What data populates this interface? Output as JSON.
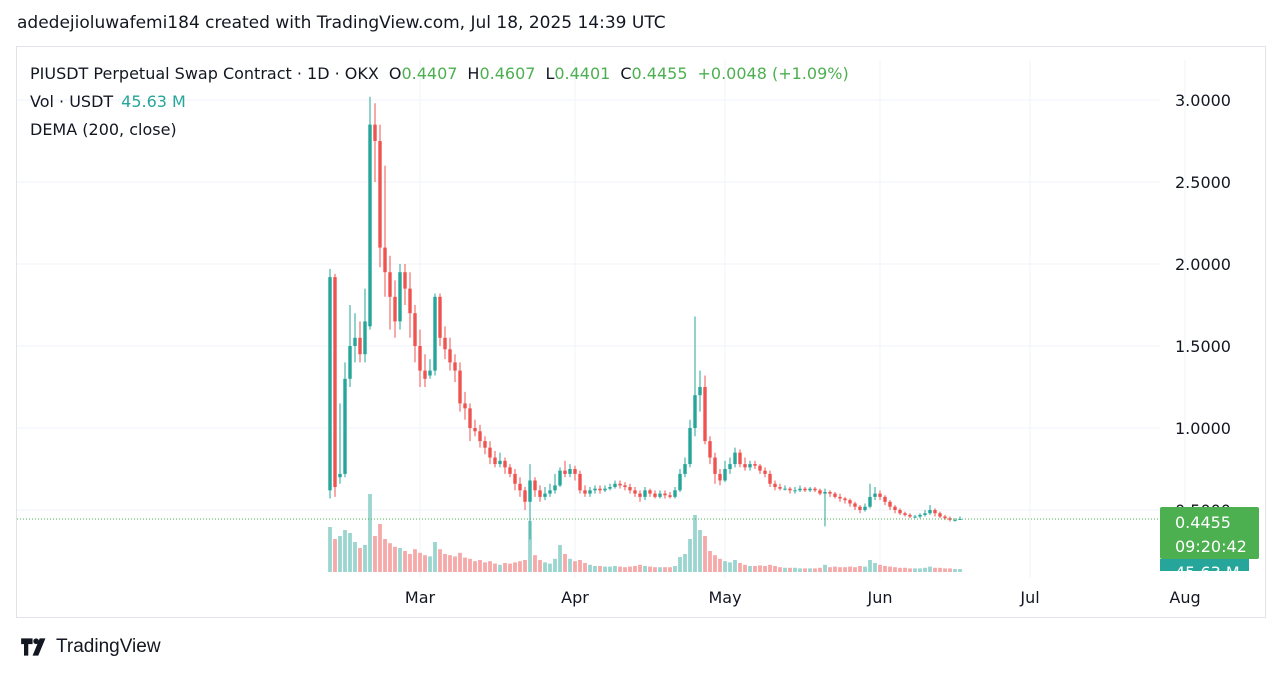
{
  "caption": "adedejioluwafemi184 created with TradingView.com, Jul 18, 2025 14:39 UTC",
  "legend": {
    "symbol": "PIUSDT Perpetual Swap Contract · 1D · OKX",
    "open_label": "O",
    "open": "0.4407",
    "high_label": "H",
    "high": "0.4607",
    "low_label": "L",
    "low": "0.4401",
    "close_label": "C",
    "close": "0.4455",
    "change": "+0.0048 (+1.09%)",
    "vol_label": "Vol · USDT",
    "vol_value": "45.63 M",
    "dema_label": "DEMA (200, close)"
  },
  "brand": "TradingView",
  "colors": {
    "up": "#26a69a",
    "down": "#ef5350",
    "up_vol": "#9bd5cf",
    "down_vol": "#f5a9a8",
    "price_tag": "#4caf50",
    "vol_tag": "#26a69a"
  },
  "chart_data": {
    "type": "candlestick",
    "y_ticks": [
      "3.0000",
      "2.5000",
      "2.0000",
      "1.5000",
      "1.0000",
      "0.5000"
    ],
    "ylim": [
      0.3,
      3.05
    ],
    "x_ticks": [
      {
        "label": "Mar",
        "day": 30
      },
      {
        "label": "Apr",
        "day": 61
      },
      {
        "label": "May",
        "day": 91
      },
      {
        "label": "Jun",
        "day": 122
      },
      {
        "label": "Jul",
        "day": 152
      },
      {
        "label": "Aug",
        "day": 183
      }
    ],
    "last_price": "0.4455",
    "last_price_value": 0.4455,
    "countdown": "09:20:42",
    "last_volume": "45.63 M",
    "candles": [
      [
        0.62,
        1.92,
        1.97,
        0.57,
        75
      ],
      [
        1.92,
        0.64,
        1.94,
        0.58,
        55
      ],
      [
        0.7,
        0.72,
        1.15,
        0.66,
        60
      ],
      [
        0.72,
        1.3,
        1.4,
        0.7,
        70
      ],
      [
        1.3,
        1.5,
        1.75,
        1.25,
        65
      ],
      [
        1.5,
        1.55,
        1.7,
        1.4,
        50
      ],
      [
        1.55,
        1.45,
        1.65,
        1.4,
        40
      ],
      [
        1.45,
        1.65,
        1.85,
        1.4,
        45
      ],
      [
        1.62,
        2.85,
        3.02,
        1.6,
        130
      ],
      [
        2.85,
        2.75,
        2.98,
        2.5,
        60
      ],
      [
        2.75,
        2.1,
        2.85,
        1.98,
        80
      ],
      [
        2.1,
        1.95,
        2.6,
        1.8,
        55
      ],
      [
        1.95,
        1.8,
        2.05,
        1.6,
        48
      ],
      [
        1.8,
        1.65,
        1.9,
        1.55,
        42
      ],
      [
        1.65,
        1.95,
        2.0,
        1.6,
        40
      ],
      [
        1.95,
        1.85,
        2.0,
        1.75,
        35
      ],
      [
        1.85,
        1.7,
        1.95,
        1.55,
        30
      ],
      [
        1.7,
        1.5,
        1.75,
        1.4,
        38
      ],
      [
        1.5,
        1.35,
        1.6,
        1.25,
        32
      ],
      [
        1.35,
        1.3,
        1.45,
        1.25,
        28
      ],
      [
        1.32,
        1.35,
        1.42,
        1.3,
        26
      ],
      [
        1.35,
        1.8,
        1.82,
        1.32,
        50
      ],
      [
        1.8,
        1.55,
        1.82,
        1.5,
        38
      ],
      [
        1.55,
        1.48,
        1.62,
        1.42,
        30
      ],
      [
        1.48,
        1.4,
        1.55,
        1.35,
        28
      ],
      [
        1.4,
        1.35,
        1.45,
        1.28,
        26
      ],
      [
        1.35,
        1.15,
        1.4,
        1.1,
        32
      ],
      [
        1.15,
        1.12,
        1.22,
        1.05,
        24
      ],
      [
        1.12,
        1.0,
        1.15,
        0.92,
        22
      ],
      [
        1.0,
        0.98,
        1.05,
        0.95,
        18
      ],
      [
        0.98,
        0.92,
        1.02,
        0.88,
        20
      ],
      [
        0.92,
        0.88,
        0.95,
        0.84,
        16
      ],
      [
        0.88,
        0.82,
        0.92,
        0.78,
        18
      ],
      [
        0.82,
        0.78,
        0.86,
        0.76,
        14
      ],
      [
        0.78,
        0.8,
        0.85,
        0.76,
        12
      ],
      [
        0.8,
        0.76,
        0.82,
        0.72,
        15
      ],
      [
        0.76,
        0.72,
        0.78,
        0.7,
        14
      ],
      [
        0.72,
        0.66,
        0.75,
        0.62,
        16
      ],
      [
        0.66,
        0.62,
        0.7,
        0.58,
        18
      ],
      [
        0.62,
        0.55,
        0.64,
        0.5,
        20
      ],
      [
        0.55,
        0.68,
        0.78,
        0.32,
        85
      ],
      [
        0.68,
        0.62,
        0.7,
        0.58,
        28
      ],
      [
        0.62,
        0.58,
        0.65,
        0.55,
        20
      ],
      [
        0.58,
        0.6,
        0.64,
        0.56,
        16
      ],
      [
        0.6,
        0.62,
        0.66,
        0.58,
        14
      ],
      [
        0.62,
        0.65,
        0.72,
        0.6,
        22
      ],
      [
        0.65,
        0.74,
        0.76,
        0.64,
        45
      ],
      [
        0.74,
        0.72,
        0.8,
        0.7,
        30
      ],
      [
        0.72,
        0.75,
        0.78,
        0.7,
        22
      ],
      [
        0.75,
        0.72,
        0.77,
        0.68,
        18
      ],
      [
        0.72,
        0.62,
        0.74,
        0.6,
        20
      ],
      [
        0.62,
        0.6,
        0.65,
        0.58,
        15
      ],
      [
        0.6,
        0.62,
        0.64,
        0.58,
        12
      ],
      [
        0.62,
        0.63,
        0.65,
        0.6,
        10
      ],
      [
        0.63,
        0.62,
        0.65,
        0.6,
        10
      ],
      [
        0.62,
        0.63,
        0.65,
        0.61,
        9
      ],
      [
        0.63,
        0.64,
        0.66,
        0.62,
        9
      ],
      [
        0.64,
        0.66,
        0.68,
        0.63,
        10
      ],
      [
        0.66,
        0.65,
        0.68,
        0.63,
        9
      ],
      [
        0.65,
        0.64,
        0.67,
        0.62,
        8
      ],
      [
        0.64,
        0.62,
        0.66,
        0.6,
        9
      ],
      [
        0.62,
        0.6,
        0.64,
        0.58,
        10
      ],
      [
        0.6,
        0.58,
        0.62,
        0.55,
        12
      ],
      [
        0.58,
        0.62,
        0.64,
        0.56,
        10
      ],
      [
        0.62,
        0.6,
        0.63,
        0.58,
        9
      ],
      [
        0.6,
        0.58,
        0.62,
        0.57,
        8
      ],
      [
        0.58,
        0.6,
        0.62,
        0.57,
        8
      ],
      [
        0.6,
        0.59,
        0.62,
        0.57,
        8
      ],
      [
        0.59,
        0.58,
        0.61,
        0.57,
        8
      ],
      [
        0.58,
        0.62,
        0.64,
        0.57,
        10
      ],
      [
        0.62,
        0.72,
        0.75,
        0.61,
        25
      ],
      [
        0.72,
        0.78,
        0.82,
        0.7,
        30
      ],
      [
        0.78,
        1.0,
        1.05,
        0.76,
        55
      ],
      [
        1.0,
        1.2,
        1.68,
        0.95,
        95
      ],
      [
        1.2,
        1.25,
        1.35,
        1.1,
        70
      ],
      [
        1.25,
        0.92,
        1.32,
        0.9,
        60
      ],
      [
        0.92,
        0.82,
        0.95,
        0.78,
        35
      ],
      [
        0.82,
        0.72,
        0.85,
        0.66,
        28
      ],
      [
        0.72,
        0.68,
        0.75,
        0.65,
        22
      ],
      [
        0.68,
        0.75,
        0.8,
        0.67,
        18
      ],
      [
        0.75,
        0.78,
        0.82,
        0.72,
        16
      ],
      [
        0.78,
        0.85,
        0.88,
        0.76,
        20
      ],
      [
        0.85,
        0.78,
        0.87,
        0.76,
        15
      ],
      [
        0.78,
        0.76,
        0.82,
        0.74,
        12
      ],
      [
        0.76,
        0.78,
        0.8,
        0.74,
        10
      ],
      [
        0.78,
        0.77,
        0.8,
        0.75,
        10
      ],
      [
        0.77,
        0.74,
        0.78,
        0.72,
        11
      ],
      [
        0.74,
        0.72,
        0.76,
        0.7,
        10
      ],
      [
        0.72,
        0.66,
        0.74,
        0.64,
        12
      ],
      [
        0.66,
        0.64,
        0.68,
        0.62,
        10
      ],
      [
        0.64,
        0.63,
        0.66,
        0.62,
        8
      ],
      [
        0.63,
        0.63,
        0.65,
        0.62,
        7
      ],
      [
        0.63,
        0.62,
        0.64,
        0.6,
        7
      ],
      [
        0.62,
        0.62,
        0.64,
        0.6,
        7
      ],
      [
        0.62,
        0.63,
        0.65,
        0.61,
        6
      ],
      [
        0.63,
        0.62,
        0.64,
        0.61,
        6
      ],
      [
        0.62,
        0.63,
        0.64,
        0.61,
        6
      ],
      [
        0.63,
        0.62,
        0.64,
        0.61,
        6
      ],
      [
        0.62,
        0.6,
        0.63,
        0.59,
        7
      ],
      [
        0.6,
        0.61,
        0.63,
        0.4,
        12
      ],
      [
        0.61,
        0.6,
        0.62,
        0.58,
        8
      ],
      [
        0.6,
        0.58,
        0.61,
        0.57,
        9
      ],
      [
        0.58,
        0.57,
        0.6,
        0.55,
        8
      ],
      [
        0.57,
        0.56,
        0.58,
        0.54,
        8
      ],
      [
        0.56,
        0.54,
        0.57,
        0.52,
        9
      ],
      [
        0.54,
        0.52,
        0.55,
        0.5,
        8
      ],
      [
        0.52,
        0.5,
        0.53,
        0.48,
        10
      ],
      [
        0.5,
        0.52,
        0.54,
        0.49,
        9
      ],
      [
        0.52,
        0.58,
        0.66,
        0.51,
        20
      ],
      [
        0.58,
        0.6,
        0.64,
        0.56,
        15
      ],
      [
        0.6,
        0.58,
        0.62,
        0.56,
        12
      ],
      [
        0.58,
        0.55,
        0.59,
        0.53,
        10
      ],
      [
        0.55,
        0.52,
        0.56,
        0.5,
        9
      ],
      [
        0.52,
        0.5,
        0.53,
        0.48,
        8
      ],
      [
        0.5,
        0.48,
        0.51,
        0.47,
        7
      ],
      [
        0.48,
        0.47,
        0.49,
        0.46,
        7
      ],
      [
        0.47,
        0.46,
        0.48,
        0.45,
        6
      ],
      [
        0.46,
        0.46,
        0.47,
        0.45,
        6
      ],
      [
        0.46,
        0.47,
        0.48,
        0.45,
        6
      ],
      [
        0.47,
        0.48,
        0.5,
        0.46,
        7
      ],
      [
        0.48,
        0.5,
        0.53,
        0.47,
        9
      ],
      [
        0.5,
        0.48,
        0.51,
        0.46,
        7
      ],
      [
        0.48,
        0.46,
        0.49,
        0.45,
        7
      ],
      [
        0.46,
        0.45,
        0.47,
        0.44,
        6
      ],
      [
        0.45,
        0.44,
        0.46,
        0.43,
        6
      ],
      [
        0.44,
        0.44,
        0.45,
        0.43,
        5
      ],
      [
        0.4407,
        0.4455,
        0.4607,
        0.4401,
        5
      ]
    ]
  }
}
